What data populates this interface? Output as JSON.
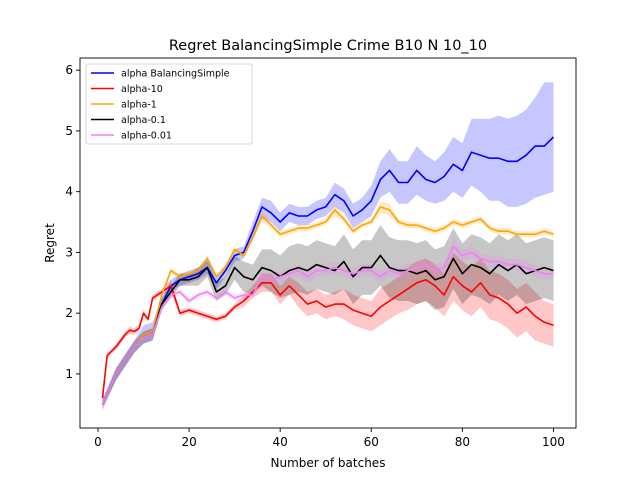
{
  "chart_data": {
    "type": "line",
    "title": "Regret BalancingSimple Crime B10 N 10_10",
    "xlabel": "Number of batches",
    "ylabel": "Regret",
    "xlim": [
      -3.95,
      104.95
    ],
    "ylim": [
      0.11,
      6.2
    ],
    "xticks": [
      0,
      20,
      40,
      60,
      80,
      100
    ],
    "yticks": [
      1,
      2,
      3,
      4,
      5,
      6
    ],
    "legend_position": "top-left",
    "series": [
      {
        "name": "alpha BalancingSimple",
        "color": "#0000ff",
        "x": [
          1,
          4,
          8,
          10,
          12,
          14,
          16,
          18,
          20,
          22,
          24,
          26,
          28,
          30,
          32,
          34,
          36,
          38,
          40,
          42,
          44,
          46,
          48,
          50,
          52,
          54,
          56,
          58,
          60,
          62,
          64,
          66,
          68,
          70,
          72,
          74,
          76,
          78,
          80,
          82,
          84,
          86,
          88,
          90,
          92,
          94,
          96,
          98,
          100
        ],
        "values": [
          0.5,
          1.0,
          1.45,
          1.65,
          1.7,
          2.15,
          2.45,
          2.55,
          2.6,
          2.65,
          2.75,
          2.5,
          2.7,
          2.95,
          3.0,
          3.35,
          3.75,
          3.65,
          3.5,
          3.65,
          3.6,
          3.6,
          3.7,
          3.75,
          3.95,
          3.85,
          3.6,
          3.7,
          3.85,
          4.2,
          4.35,
          4.15,
          4.15,
          4.35,
          4.2,
          4.15,
          4.25,
          4.45,
          4.35,
          4.65,
          4.6,
          4.55,
          4.55,
          4.5,
          4.5,
          4.6,
          4.75,
          4.75,
          4.9
        ],
        "lower": [
          0.4,
          0.9,
          1.35,
          1.5,
          1.55,
          2.05,
          2.35,
          2.45,
          2.5,
          2.55,
          2.65,
          2.4,
          2.6,
          2.85,
          2.9,
          3.2,
          3.55,
          3.5,
          3.35,
          3.5,
          3.45,
          3.45,
          3.55,
          3.6,
          3.75,
          3.65,
          3.4,
          3.5,
          3.6,
          3.9,
          4.0,
          3.8,
          3.8,
          3.95,
          3.85,
          3.8,
          3.85,
          4.0,
          3.9,
          4.1,
          4.0,
          3.85,
          3.85,
          3.75,
          3.75,
          3.8,
          3.9,
          3.95,
          4.0
        ],
        "upper": [
          0.6,
          1.1,
          1.55,
          1.8,
          1.85,
          2.25,
          2.55,
          2.65,
          2.7,
          2.75,
          2.85,
          2.6,
          2.8,
          3.05,
          3.1,
          3.5,
          3.9,
          3.85,
          3.65,
          3.8,
          3.75,
          3.75,
          3.85,
          3.9,
          4.15,
          4.05,
          3.8,
          3.9,
          4.1,
          4.5,
          4.7,
          4.5,
          4.5,
          4.75,
          4.6,
          4.5,
          4.65,
          4.9,
          4.8,
          5.2,
          5.2,
          5.2,
          5.25,
          5.2,
          5.25,
          5.35,
          5.55,
          5.8,
          5.8
        ]
      },
      {
        "name": "alpha-10",
        "color": "#ff0000",
        "x": [
          1,
          2,
          4,
          6,
          7,
          8,
          9,
          10,
          11,
          12,
          14,
          16,
          18,
          20,
          22,
          24,
          26,
          28,
          30,
          32,
          34,
          36,
          38,
          40,
          42,
          44,
          46,
          48,
          50,
          52,
          54,
          56,
          58,
          60,
          62,
          64,
          66,
          68,
          70,
          72,
          74,
          76,
          78,
          80,
          82,
          84,
          86,
          88,
          90,
          92,
          94,
          96,
          98,
          100
        ],
        "values": [
          0.6,
          1.3,
          1.45,
          1.65,
          1.72,
          1.7,
          1.75,
          2.0,
          1.9,
          2.25,
          2.35,
          2.45,
          2.0,
          2.05,
          2.0,
          1.95,
          1.9,
          1.95,
          2.1,
          2.2,
          2.35,
          2.5,
          2.5,
          2.3,
          2.45,
          2.3,
          2.15,
          2.2,
          2.1,
          2.15,
          2.15,
          2.05,
          2.0,
          1.95,
          2.1,
          2.2,
          2.3,
          2.4,
          2.5,
          2.55,
          2.45,
          2.3,
          2.6,
          2.45,
          2.35,
          2.5,
          2.3,
          2.25,
          2.15,
          2.0,
          2.1,
          1.95,
          1.85,
          1.8
        ],
        "lower": [
          0.55,
          1.25,
          1.4,
          1.6,
          1.65,
          1.65,
          1.7,
          1.95,
          1.85,
          2.2,
          2.3,
          2.35,
          1.95,
          2.0,
          1.95,
          1.9,
          1.85,
          1.9,
          2.05,
          2.1,
          2.25,
          2.35,
          2.35,
          2.15,
          2.3,
          2.1,
          1.95,
          2.0,
          1.9,
          1.95,
          1.9,
          1.8,
          1.75,
          1.7,
          1.8,
          1.9,
          2.0,
          2.05,
          2.15,
          2.2,
          2.1,
          1.95,
          2.2,
          2.05,
          1.95,
          2.1,
          1.9,
          1.85,
          1.75,
          1.6,
          1.7,
          1.55,
          1.5,
          1.45
        ],
        "upper": [
          0.65,
          1.35,
          1.5,
          1.7,
          1.78,
          1.75,
          1.8,
          2.05,
          1.95,
          2.3,
          2.4,
          2.55,
          2.05,
          2.1,
          2.05,
          2.0,
          1.95,
          2.0,
          2.15,
          2.3,
          2.45,
          2.65,
          2.65,
          2.45,
          2.6,
          2.5,
          2.35,
          2.4,
          2.3,
          2.35,
          2.4,
          2.3,
          2.25,
          2.2,
          2.4,
          2.5,
          2.6,
          2.75,
          2.85,
          2.9,
          2.8,
          2.65,
          3.0,
          2.85,
          2.75,
          2.9,
          2.7,
          2.65,
          2.55,
          2.4,
          2.5,
          2.35,
          2.2,
          2.15
        ]
      },
      {
        "name": "alpha-1",
        "color": "#ffa500",
        "x": [
          1,
          4,
          8,
          10,
          12,
          14,
          16,
          18,
          20,
          22,
          24,
          26,
          28,
          30,
          32,
          34,
          36,
          38,
          40,
          42,
          44,
          46,
          48,
          50,
          52,
          54,
          56,
          58,
          60,
          62,
          64,
          66,
          68,
          70,
          72,
          74,
          76,
          78,
          80,
          82,
          84,
          86,
          88,
          90,
          92,
          94,
          96,
          98,
          100
        ],
        "values": [
          0.5,
          1.0,
          1.45,
          1.65,
          1.7,
          2.3,
          2.7,
          2.6,
          2.65,
          2.7,
          2.9,
          2.6,
          2.75,
          3.05,
          2.95,
          3.25,
          3.6,
          3.45,
          3.3,
          3.35,
          3.4,
          3.4,
          3.45,
          3.5,
          3.7,
          3.55,
          3.35,
          3.45,
          3.5,
          3.75,
          3.7,
          3.5,
          3.45,
          3.45,
          3.4,
          3.35,
          3.4,
          3.5,
          3.45,
          3.5,
          3.55,
          3.4,
          3.35,
          3.35,
          3.3,
          3.3,
          3.3,
          3.35,
          3.3
        ],
        "lower": [
          0.45,
          0.95,
          1.4,
          1.6,
          1.65,
          2.25,
          2.65,
          2.55,
          2.6,
          2.65,
          2.85,
          2.55,
          2.7,
          3.0,
          2.9,
          3.2,
          3.5,
          3.4,
          3.25,
          3.3,
          3.35,
          3.35,
          3.4,
          3.45,
          3.6,
          3.5,
          3.3,
          3.4,
          3.45,
          3.65,
          3.6,
          3.45,
          3.4,
          3.4,
          3.35,
          3.3,
          3.35,
          3.45,
          3.4,
          3.45,
          3.5,
          3.35,
          3.3,
          3.3,
          3.25,
          3.25,
          3.25,
          3.3,
          3.25
        ],
        "upper": [
          0.55,
          1.05,
          1.5,
          1.7,
          1.75,
          2.35,
          2.75,
          2.65,
          2.7,
          2.75,
          2.95,
          2.65,
          2.8,
          3.1,
          3.0,
          3.3,
          3.7,
          3.5,
          3.35,
          3.4,
          3.45,
          3.45,
          3.5,
          3.55,
          3.8,
          3.6,
          3.4,
          3.5,
          3.55,
          3.85,
          3.8,
          3.55,
          3.5,
          3.5,
          3.45,
          3.4,
          3.45,
          3.55,
          3.5,
          3.55,
          3.6,
          3.45,
          3.4,
          3.4,
          3.35,
          3.35,
          3.35,
          3.4,
          3.35
        ]
      },
      {
        "name": "alpha-0.1",
        "color": "#000000",
        "x": [
          1,
          4,
          8,
          10,
          12,
          14,
          16,
          18,
          20,
          22,
          24,
          26,
          28,
          30,
          32,
          34,
          36,
          38,
          40,
          42,
          44,
          46,
          48,
          50,
          52,
          54,
          56,
          58,
          60,
          62,
          64,
          66,
          68,
          70,
          72,
          74,
          76,
          78,
          80,
          82,
          84,
          86,
          88,
          90,
          92,
          94,
          96,
          98,
          100
        ],
        "values": [
          0.5,
          1.0,
          1.45,
          1.6,
          1.65,
          2.15,
          2.35,
          2.55,
          2.55,
          2.6,
          2.75,
          2.35,
          2.45,
          2.75,
          2.6,
          2.55,
          2.75,
          2.7,
          2.6,
          2.7,
          2.75,
          2.7,
          2.8,
          2.75,
          2.7,
          2.85,
          2.6,
          2.75,
          2.75,
          2.95,
          2.75,
          2.7,
          2.7,
          2.65,
          2.7,
          2.55,
          2.6,
          2.9,
          2.65,
          2.8,
          2.75,
          2.65,
          2.8,
          2.7,
          2.8,
          2.65,
          2.7,
          2.75,
          2.7
        ],
        "lower": [
          0.45,
          0.9,
          1.35,
          1.5,
          1.55,
          2.05,
          2.25,
          2.45,
          2.45,
          2.45,
          2.6,
          2.2,
          2.3,
          2.55,
          2.35,
          2.3,
          2.45,
          2.35,
          2.25,
          2.3,
          2.35,
          2.3,
          2.4,
          2.35,
          2.3,
          2.4,
          2.15,
          2.3,
          2.3,
          2.45,
          2.25,
          2.2,
          2.2,
          2.15,
          2.2,
          2.05,
          2.1,
          2.4,
          2.15,
          2.3,
          2.25,
          2.15,
          2.3,
          2.2,
          2.3,
          2.15,
          2.2,
          2.25,
          2.2
        ],
        "upper": [
          0.55,
          1.1,
          1.55,
          1.7,
          1.75,
          2.25,
          2.45,
          2.65,
          2.65,
          2.75,
          2.9,
          2.5,
          2.6,
          2.95,
          2.85,
          2.8,
          3.05,
          3.05,
          2.95,
          3.1,
          3.15,
          3.1,
          3.2,
          3.15,
          3.1,
          3.3,
          3.05,
          3.2,
          3.2,
          3.45,
          3.25,
          3.2,
          3.2,
          3.15,
          3.2,
          3.05,
          3.1,
          3.4,
          3.15,
          3.3,
          3.25,
          3.15,
          3.3,
          3.2,
          3.3,
          3.15,
          3.2,
          3.25,
          3.2
        ]
      },
      {
        "name": "alpha-0.01",
        "color": "#ee82ee",
        "x": [
          1,
          4,
          8,
          10,
          12,
          14,
          16,
          18,
          20,
          22,
          24,
          26,
          28,
          30,
          32,
          34,
          36,
          38,
          40,
          42,
          44,
          46,
          48,
          50,
          52,
          54,
          56,
          58,
          60,
          62,
          64,
          66,
          68,
          70,
          72,
          74,
          76,
          78,
          80,
          82,
          84,
          86,
          88,
          90,
          92,
          94,
          96,
          98,
          100
        ],
        "values": [
          0.5,
          1.0,
          1.45,
          1.6,
          1.65,
          2.1,
          2.3,
          2.35,
          2.2,
          2.3,
          2.35,
          2.25,
          2.35,
          2.25,
          2.3,
          2.3,
          2.6,
          2.55,
          2.6,
          2.65,
          2.7,
          2.6,
          2.7,
          2.7,
          2.75,
          2.7,
          2.65,
          2.7,
          2.7,
          2.6,
          2.7,
          2.65,
          2.7,
          2.75,
          2.8,
          2.7,
          2.75,
          3.1,
          2.95,
          3.0,
          2.9,
          2.85,
          2.85,
          2.8,
          2.8,
          2.75,
          2.7,
          2.65,
          2.65
        ],
        "lower": [
          0.45,
          0.95,
          1.4,
          1.55,
          1.6,
          2.05,
          2.25,
          2.3,
          2.15,
          2.25,
          2.3,
          2.2,
          2.3,
          2.2,
          2.25,
          2.25,
          2.5,
          2.45,
          2.5,
          2.55,
          2.6,
          2.5,
          2.6,
          2.6,
          2.65,
          2.6,
          2.55,
          2.6,
          2.6,
          2.5,
          2.6,
          2.55,
          2.6,
          2.65,
          2.7,
          2.6,
          2.65,
          2.95,
          2.85,
          2.9,
          2.8,
          2.75,
          2.75,
          2.7,
          2.7,
          2.65,
          2.6,
          2.55,
          2.55
        ],
        "upper": [
          0.55,
          1.05,
          1.5,
          1.65,
          1.7,
          2.15,
          2.35,
          2.4,
          2.25,
          2.35,
          2.4,
          2.3,
          2.4,
          2.3,
          2.35,
          2.35,
          2.7,
          2.65,
          2.7,
          2.75,
          2.8,
          2.7,
          2.8,
          2.8,
          2.85,
          2.8,
          2.75,
          2.8,
          2.8,
          2.7,
          2.8,
          2.75,
          2.8,
          2.85,
          2.9,
          2.8,
          2.85,
          3.25,
          3.05,
          3.1,
          3.0,
          2.95,
          2.95,
          2.9,
          2.9,
          2.85,
          2.8,
          2.75,
          2.75
        ]
      }
    ]
  }
}
